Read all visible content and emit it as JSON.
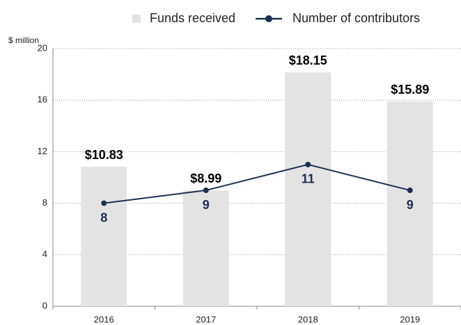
{
  "chart_data": {
    "type": "bar_line",
    "y_axis_label": "$ million",
    "categories": [
      "2016",
      "2017",
      "2018",
      "2019"
    ],
    "series": [
      {
        "name": "Funds received",
        "type": "bar",
        "color": "#e3e3e3",
        "values": [
          10.83,
          8.99,
          18.15,
          15.89
        ],
        "value_labels": [
          "$10.83",
          "$8.99",
          "$18.15",
          "$15.89"
        ]
      },
      {
        "name": "Number of contributors",
        "type": "line",
        "color": "#1c3152",
        "values": [
          8,
          9,
          11,
          9
        ]
      }
    ],
    "ylim": [
      0,
      20
    ],
    "yticks": [
      0,
      4,
      8,
      12,
      16,
      20
    ],
    "grid": true,
    "legend": "top"
  }
}
